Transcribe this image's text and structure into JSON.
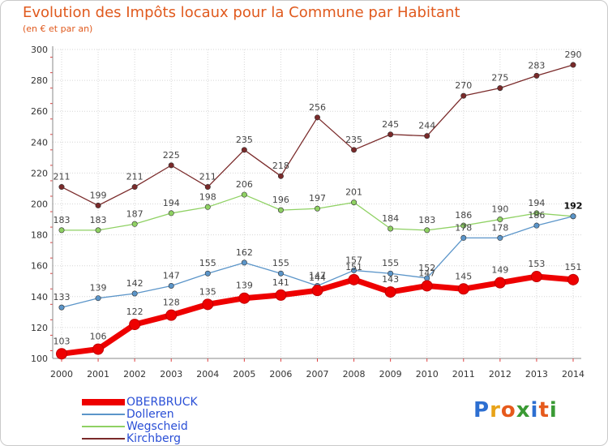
{
  "title": "Evolution des Impôts locaux pour la Commune par Habitant",
  "subtitle": "(en € et par an)",
  "logo": {
    "text": "Proxiti",
    "letters": [
      "P",
      "r",
      "o",
      "x",
      "i",
      "t",
      "i"
    ],
    "colors": [
      "#2d6fd1",
      "#e8a318",
      "#e65a1c",
      "#3a9a34",
      "#2d6fd1",
      "#e65a1c",
      "#3a9a34"
    ]
  },
  "colors": {
    "OBERBRUCK": "#ee0000",
    "Dolleren": "#5b95c9",
    "Wegscheid": "#8fd163",
    "Kirchberg": "#7a2a2a"
  },
  "chart_data": {
    "type": "line",
    "title": "Evolution des Impôts locaux pour la Commune par Habitant",
    "subtitle": "(en € et par an)",
    "xlabel": "",
    "ylabel": "",
    "x": [
      "2000",
      "2001",
      "2002",
      "2003",
      "2004",
      "2005",
      "2006",
      "2007",
      "2008",
      "2009",
      "2010",
      "2011",
      "2012",
      "2013",
      "2014"
    ],
    "ylim": [
      100,
      300
    ],
    "yticks": [
      "100",
      "120",
      "140",
      "160",
      "180",
      "200",
      "220",
      "240",
      "260",
      "280",
      "300"
    ],
    "grid": true,
    "legend_position": "bottom-left",
    "series": [
      {
        "name": "OBERBRUCK",
        "values": [
          103,
          106,
          122,
          128,
          135,
          139,
          141,
          144,
          151,
          143,
          147,
          145,
          149,
          153,
          151
        ],
        "labels": [
          "103",
          "106",
          "122",
          "128",
          "135",
          "139",
          "141",
          "144",
          "151",
          "143",
          "147",
          "145",
          "149",
          "153",
          "151"
        ]
      },
      {
        "name": "Dolleren",
        "values": [
          133,
          139,
          142,
          147,
          155,
          162,
          155,
          147,
          157,
          155,
          152,
          178,
          178,
          186,
          192
        ],
        "labels": [
          "133",
          "139",
          "142",
          "147",
          "155",
          "162",
          "155",
          "147",
          "157",
          "155",
          "152",
          "178",
          "178",
          "186",
          "192"
        ]
      },
      {
        "name": "Wegscheid",
        "values": [
          183,
          183,
          187,
          194,
          198,
          206,
          196,
          197,
          201,
          184,
          183,
          186,
          190,
          194,
          192
        ],
        "labels": [
          "183",
          "183",
          "187",
          "194",
          "198",
          "206",
          "196",
          "197",
          "201",
          "184",
          "183",
          "186",
          "190",
          "194",
          "192"
        ]
      },
      {
        "name": "Kirchberg",
        "values": [
          211,
          199,
          211,
          225,
          211,
          235,
          218,
          256,
          235,
          245,
          244,
          270,
          275,
          283,
          290
        ],
        "labels": [
          "211",
          "199",
          "211",
          "225",
          "211",
          "235",
          "218",
          "256",
          "235",
          "245",
          "244",
          "270",
          "275",
          "283",
          "290"
        ]
      }
    ]
  }
}
